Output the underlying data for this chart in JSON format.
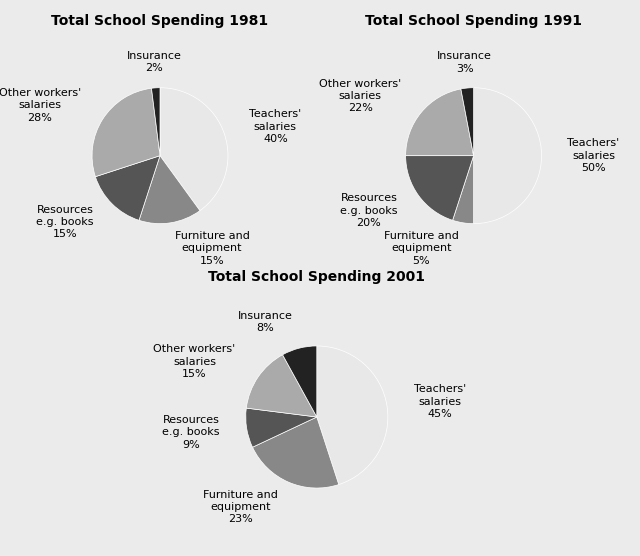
{
  "charts": [
    {
      "title": "Total School Spending 1981",
      "labels": [
        "Teachers'\nsalaries",
        "Furniture and\nequipment",
        "Resources\ne.g. books",
        "Other workers'\nsalaries",
        "Insurance"
      ],
      "values": [
        40,
        15,
        15,
        28,
        2
      ],
      "colors": [
        "#e8e8e8",
        "#888888",
        "#555555",
        "#aaaaaa",
        "#222222"
      ],
      "label_pcts": [
        "40%",
        "15%",
        "15%",
        "28%",
        "2%"
      ],
      "startangle": 90
    },
    {
      "title": "Total School Spending 1991",
      "labels": [
        "Teachers'\nsalaries",
        "Furniture and\nequipment",
        "Resources\ne.g. books",
        "Other workers'\nsalaries",
        "Insurance"
      ],
      "values": [
        50,
        5,
        20,
        22,
        3
      ],
      "colors": [
        "#e8e8e8",
        "#888888",
        "#555555",
        "#aaaaaa",
        "#222222"
      ],
      "label_pcts": [
        "50%",
        "5%",
        "20%",
        "22%",
        "3%"
      ],
      "startangle": 90
    },
    {
      "title": "Total School Spending 2001",
      "labels": [
        "Teachers'\nsalaries",
        "Furniture and\nequipment",
        "Resources\ne.g. books",
        "Other workers'\nsalaries",
        "Insurance"
      ],
      "values": [
        45,
        23,
        9,
        15,
        8
      ],
      "colors": [
        "#e8e8e8",
        "#888888",
        "#555555",
        "#aaaaaa",
        "#222222"
      ],
      "label_pcts": [
        "45%",
        "23%",
        "9%",
        "15%",
        "8%"
      ],
      "startangle": 90
    }
  ],
  "bg_color": "#ebebeb",
  "title_fontsize": 10,
  "label_fontsize": 8
}
